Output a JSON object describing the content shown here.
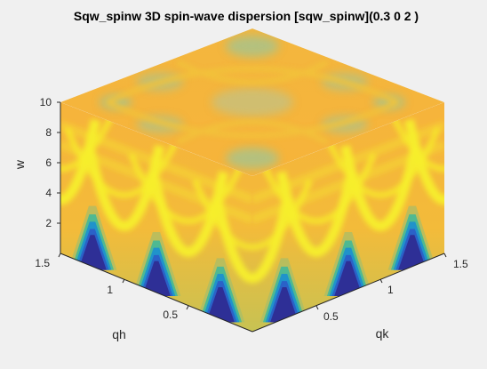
{
  "chart_data": {
    "type": "heatmap",
    "title": "Sqw_spinw 3D spin-wave dispersion [sqw_spinw](0.3 0 2 )",
    "xlabel": "qh",
    "ylabel": "qk",
    "zlabel": "w",
    "xlim": [
      0,
      1.5
    ],
    "ylim": [
      0,
      1.5
    ],
    "zlim": [
      0,
      10
    ],
    "xticks": [
      "0.5",
      "1",
      "1.5"
    ],
    "yticks": [
      "0.5",
      "1",
      "1.5"
    ],
    "zticks": [
      "2",
      "4",
      "6",
      "8",
      "10"
    ],
    "colormap": [
      "#352a87",
      "#2b5fc7",
      "#1b8fd2",
      "#33b8a0",
      "#a5be6a",
      "#f9bf3a",
      "#f5e71f"
    ],
    "background_color": "#fbb33c",
    "dispersion_color": "#f7ef2a",
    "low_intensity_color": "#2e2f96"
  }
}
